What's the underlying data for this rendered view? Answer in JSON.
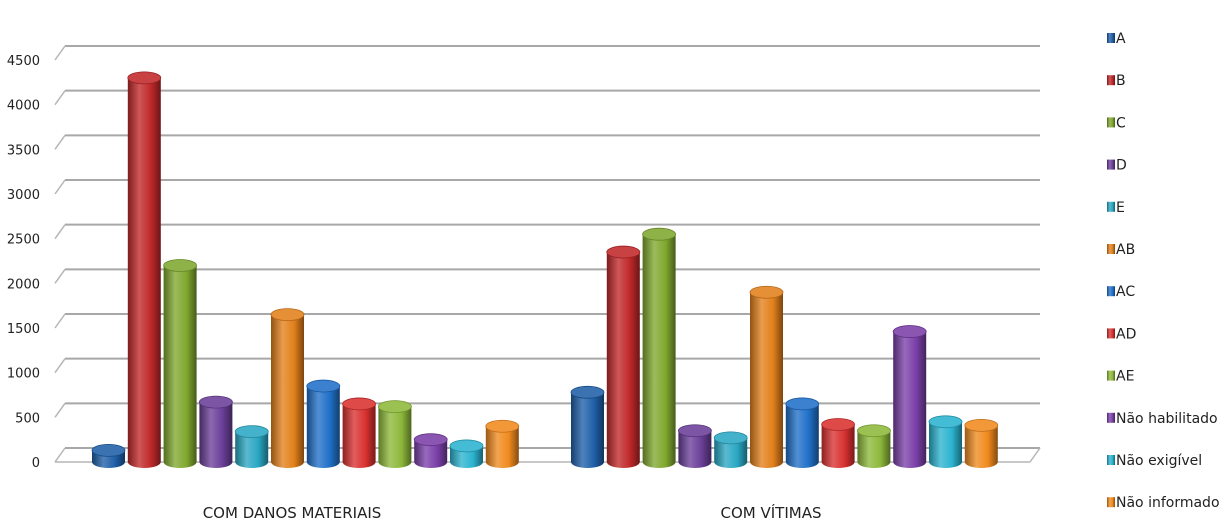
{
  "chart_data": {
    "type": "bar",
    "title": "",
    "xlabel": "",
    "ylabel": "",
    "ylim": [
      0,
      4500
    ],
    "yticks": [
      "0",
      "500",
      "1000",
      "1500",
      "2000",
      "2500",
      "3000",
      "3500",
      "4000",
      "4500"
    ],
    "grid": true,
    "legend_position": "right",
    "categories": [
      "COM DANOS MATERIAIS",
      "COM VÍTIMAS"
    ],
    "series": [
      {
        "name": "A",
        "color": "#1F5FA8",
        "values": [
          130,
          780
        ]
      },
      {
        "name": "B",
        "color": "#C0282A",
        "values": [
          4300,
          2350
        ]
      },
      {
        "name": "C",
        "color": "#7FA82E",
        "values": [
          2200,
          2550
        ]
      },
      {
        "name": "D",
        "color": "#6A3F98",
        "values": [
          670,
          350
        ]
      },
      {
        "name": "E",
        "color": "#2AA7C3",
        "values": [
          340,
          270
        ]
      },
      {
        "name": "AB",
        "color": "#E2801B",
        "values": [
          1650,
          1900
        ]
      },
      {
        "name": "AC",
        "color": "#2070C8",
        "values": [
          850,
          650
        ]
      },
      {
        "name": "AD",
        "color": "#D8312F",
        "values": [
          650,
          420
        ]
      },
      {
        "name": "AE",
        "color": "#8DB83A",
        "values": [
          620,
          350
        ]
      },
      {
        "name": "Não habilitado",
        "color": "#7A3FA8",
        "values": [
          250,
          1460
        ]
      },
      {
        "name": "Não exigível",
        "color": "#2BB3CF",
        "values": [
          180,
          450
        ]
      },
      {
        "name": "Não informado",
        "color": "#F08A1E",
        "values": [
          400,
          410
        ]
      }
    ]
  }
}
